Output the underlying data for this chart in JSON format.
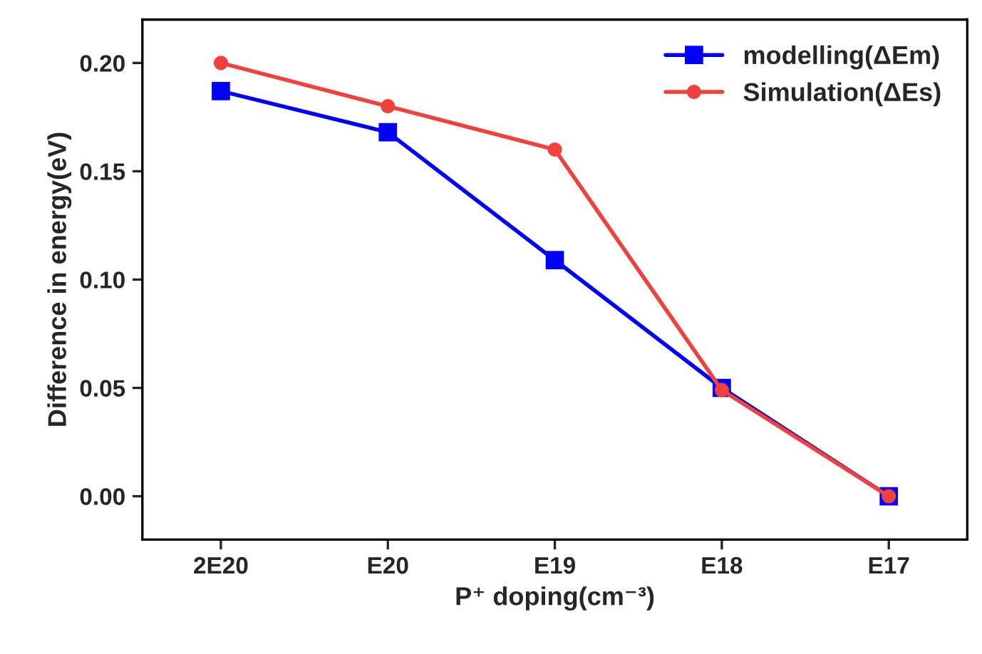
{
  "chart_data": {
    "type": "line",
    "xlabel": "P⁺ doping(cm⁻³)",
    "ylabel": "Difference in energy(eV)",
    "categories": [
      "2E20",
      "E20",
      "E19",
      "E18",
      "E17"
    ],
    "series": [
      {
        "name": "modelling(ΔEm)",
        "color": "#0000ff",
        "marker": "square",
        "values": [
          0.187,
          0.168,
          0.109,
          0.05,
          0.0
        ]
      },
      {
        "name": "Simulation(ΔEs)",
        "color": "#f0413c",
        "marker": "circle",
        "values": [
          0.2,
          0.18,
          0.16,
          0.049,
          0.0
        ]
      }
    ],
    "ylim": [
      -0.02,
      0.22
    ],
    "yticks": [
      {
        "value": 0,
        "label": "0.00"
      },
      {
        "value": 0.05,
        "label": "0.05"
      },
      {
        "value": 0.1,
        "label": "0.10"
      },
      {
        "value": 0.15,
        "label": "0.15"
      },
      {
        "value": 0.2,
        "label": "0.20"
      }
    ],
    "legend": "top right",
    "grid": false,
    "line_style": "solid"
  }
}
